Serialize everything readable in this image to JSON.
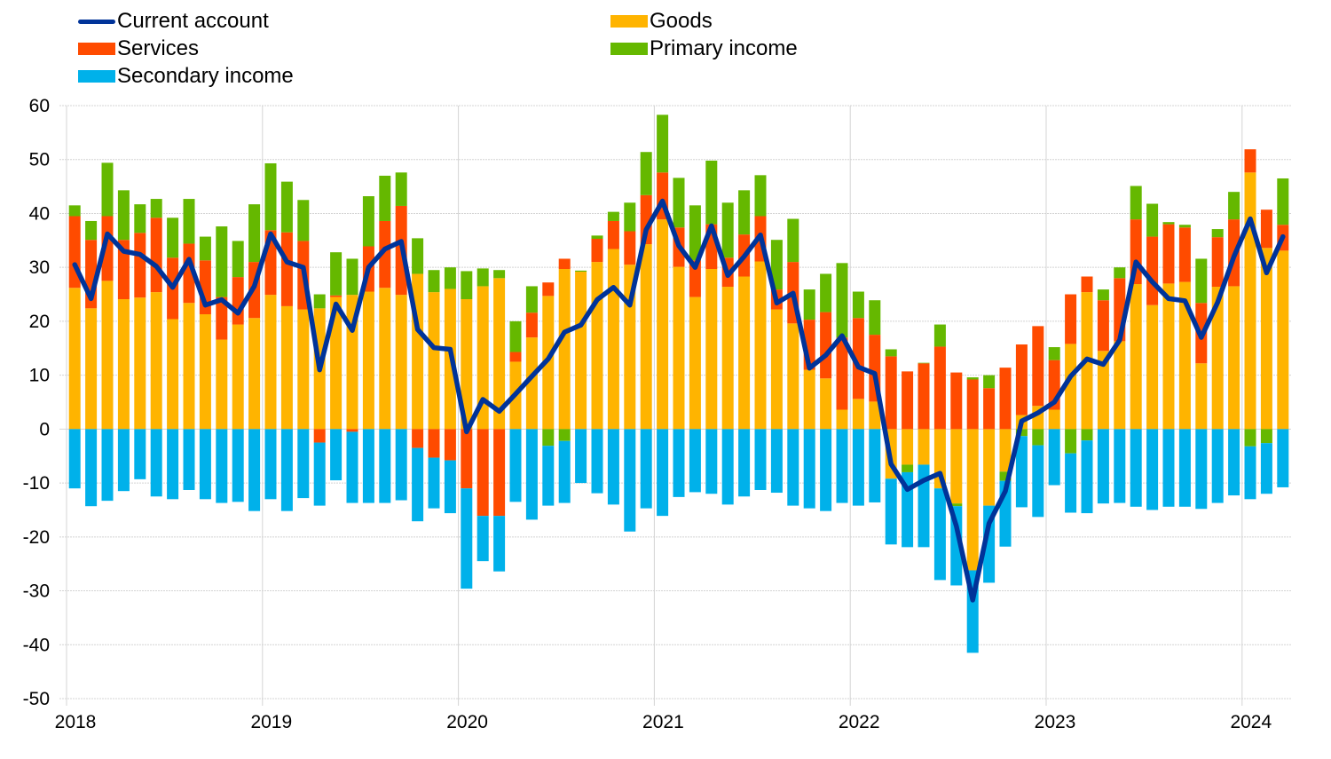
{
  "chart_data": {
    "type": "bar",
    "subtype": "stacked-bar-with-line",
    "title": "",
    "xlabel": "",
    "ylabel": "",
    "ylim": [
      -50,
      60
    ],
    "yticks": [
      60,
      50,
      40,
      30,
      20,
      10,
      0,
      -10,
      -20,
      -30,
      -40,
      -50
    ],
    "xtick_labels": [
      "2018",
      "2019",
      "2020",
      "2021",
      "2022",
      "2023",
      "2024"
    ],
    "grid": true,
    "legend_position": "top-left",
    "start": "2018-01",
    "frequency": "monthly",
    "colors": {
      "current_account": "#003399",
      "goods": "#FFB400",
      "services": "#FF4B00",
      "primary_income": "#65B800",
      "secondary_income": "#00B1EA"
    },
    "legend": [
      {
        "key": "current_account",
        "label": "Current account",
        "kind": "line"
      },
      {
        "key": "goods",
        "label": "Goods",
        "kind": "bar"
      },
      {
        "key": "services",
        "label": "Services",
        "kind": "bar"
      },
      {
        "key": "primary_income",
        "label": "Primary income",
        "kind": "bar"
      },
      {
        "key": "secondary_income",
        "label": "Secondary income",
        "kind": "bar"
      }
    ],
    "series": [
      {
        "key": "goods",
        "name": "Goods",
        "values": [
          26.2,
          22.4,
          27.5,
          24.1,
          24.4,
          25.4,
          20.4,
          23.4,
          21.3,
          16.6,
          19.4,
          20.6,
          24.9,
          22.8,
          22.2,
          22.4,
          24.5,
          24.9,
          25.5,
          26.2,
          24.9,
          28.8,
          25.4,
          26.0,
          24.1,
          26.5,
          28.0,
          12.5,
          17.0,
          24.7,
          29.7,
          29.2,
          31.0,
          33.4,
          30.5,
          34.3,
          38.9,
          30.1,
          24.5,
          29.7,
          26.4,
          28.3,
          31.1,
          22.2,
          19.6,
          11.0,
          9.4,
          3.6,
          5.6,
          5.1,
          -9.2,
          -6.6,
          -6.6,
          -11.0,
          -13.8,
          -26.2,
          -14.2,
          -7.9,
          2.6,
          4.3,
          3.6,
          15.8,
          25.4,
          14.5,
          16.3,
          26.9,
          23.0,
          27.0,
          27.3,
          12.2,
          26.4,
          26.5,
          47.6,
          33.6,
          33.1
        ]
      },
      {
        "key": "services",
        "name": "Services",
        "values": [
          13.3,
          12.7,
          12.0,
          11.0,
          12.0,
          13.8,
          11.4,
          11.0,
          10.0,
          7.9,
          8.8,
          10.4,
          12.0,
          13.7,
          12.7,
          -2.5,
          0.3,
          -0.5,
          8.4,
          12.4,
          16.5,
          -3.5,
          -5.3,
          -5.8,
          -11.0,
          -16.1,
          -16.1,
          1.8,
          4.6,
          2.5,
          1.9,
          0.0,
          4.3,
          5.2,
          6.2,
          9.1,
          8.7,
          7.3,
          6.8,
          8.3,
          5.4,
          7.8,
          8.4,
          3.7,
          11.4,
          9.3,
          12.3,
          13.4,
          15.0,
          12.4,
          13.5,
          10.7,
          12.2,
          15.3,
          10.5,
          9.2,
          7.6,
          11.4,
          13.1,
          14.8,
          9.2,
          9.2,
          2.9,
          9.4,
          11.7,
          12.0,
          12.7,
          11.0,
          10.1,
          11.2,
          9.2,
          12.4,
          4.3,
          7.1,
          4.8
        ]
      },
      {
        "key": "primary_income",
        "name": "Primary income",
        "values": [
          2.0,
          3.5,
          9.9,
          9.2,
          5.3,
          3.5,
          7.4,
          8.3,
          4.4,
          13.1,
          6.7,
          10.7,
          12.4,
          9.4,
          7.6,
          2.6,
          8.0,
          6.7,
          9.3,
          8.4,
          6.2,
          6.6,
          4.1,
          4.0,
          5.2,
          3.3,
          1.5,
          5.7,
          4.9,
          -3.1,
          -2.2,
          0.2,
          0.6,
          1.7,
          5.3,
          8.0,
          10.7,
          9.2,
          10.2,
          11.8,
          10.2,
          8.2,
          7.6,
          9.2,
          8.0,
          5.6,
          7.1,
          13.8,
          4.9,
          6.4,
          1.3,
          -1.4,
          0.1,
          4.1,
          -0.5,
          0.4,
          2.4,
          -1.7,
          -1.3,
          -3.0,
          2.4,
          -4.5,
          -2.1,
          2.0,
          2.0,
          6.2,
          6.1,
          0.4,
          0.5,
          8.2,
          1.5,
          5.1,
          -3.2,
          -2.6,
          8.6
        ]
      },
      {
        "key": "secondary_income",
        "name": "Secondary income",
        "values": [
          -11.0,
          -14.3,
          -13.3,
          -11.5,
          -9.3,
          -12.5,
          -13.0,
          -11.3,
          -13.0,
          -13.7,
          -13.5,
          -15.2,
          -13.0,
          -15.2,
          -12.8,
          -11.7,
          -9.5,
          -13.2,
          -13.7,
          -13.7,
          -13.2,
          -13.6,
          -9.4,
          -9.8,
          -18.6,
          -8.4,
          -10.3,
          -13.5,
          -16.8,
          -11.1,
          -11.5,
          -10.0,
          -11.9,
          -14.0,
          -19.0,
          -14.7,
          -16.1,
          -12.6,
          -11.7,
          -12.0,
          -14.0,
          -12.5,
          -11.3,
          -11.8,
          -14.2,
          -14.7,
          -15.2,
          -13.7,
          -14.2,
          -13.6,
          -12.2,
          -13.9,
          -15.3,
          -17.0,
          -14.7,
          -15.3,
          -14.3,
          -12.2,
          -13.2,
          -13.3,
          -10.4,
          -11.0,
          -13.5,
          -13.8,
          -13.7,
          -14.4,
          -15.0,
          -14.4,
          -14.4,
          -14.8,
          -13.7,
          -12.3,
          -9.8,
          -9.4,
          -10.8
        ]
      },
      {
        "key": "current_account",
        "name": "Current account",
        "values": [
          30.5,
          24.2,
          36.2,
          33.0,
          32.4,
          30.2,
          26.3,
          31.5,
          23.0,
          24.0,
          21.5,
          26.5,
          36.2,
          31.0,
          30.0,
          11.0,
          23.2,
          18.3,
          30.0,
          33.4,
          34.8,
          18.5,
          15.1,
          14.8,
          -0.5,
          5.5,
          3.3,
          6.5,
          9.8,
          13.0,
          18.0,
          19.3,
          24.0,
          26.3,
          23.0,
          37.0,
          42.3,
          34.0,
          30.0,
          37.7,
          28.5,
          32.0,
          36.0,
          23.4,
          25.2,
          11.3,
          13.7,
          17.3,
          11.5,
          10.3,
          -6.5,
          -11.2,
          -9.5,
          -8.2,
          -18.0,
          -31.7,
          -17.5,
          -11.5,
          1.5,
          3.0,
          5.0,
          9.8,
          13.0,
          12.0,
          16.5,
          31.0,
          27.3,
          24.2,
          23.8,
          17.0,
          23.5,
          32.0,
          39.0,
          29.0,
          35.7
        ]
      }
    ]
  }
}
